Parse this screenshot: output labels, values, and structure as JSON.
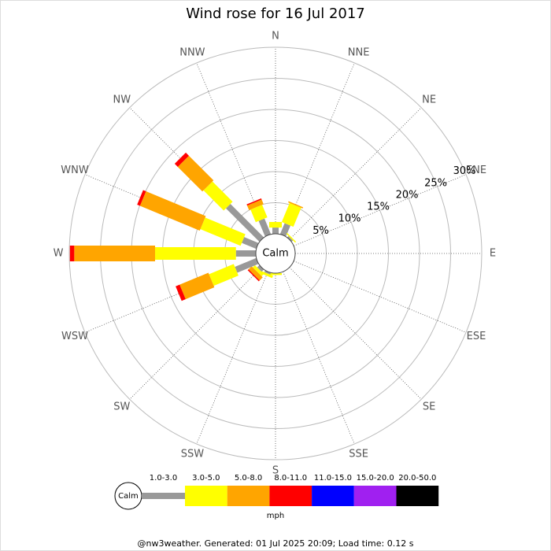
{
  "chart_data": {
    "type": "wind_rose",
    "title": "Wind rose for 16 Jul 2017",
    "calm_label": "Calm",
    "categories": [
      "N",
      "NNE",
      "NE",
      "ENE",
      "E",
      "ESE",
      "SE",
      "SSE",
      "S",
      "SSW",
      "SW",
      "WSW",
      "W",
      "WNW",
      "NW",
      "NNW"
    ],
    "series": [
      {
        "name": "1.0-3.0",
        "color": "#999999",
        "values": [
          1.0,
          1.9,
          0.3,
          0,
          0,
          0,
          0,
          0,
          0,
          0.3,
          0.5,
          3.7,
          3.2,
          2.5,
          7.6,
          2.7
        ]
      },
      {
        "name": "3.0-5.0",
        "color": "#ffff00",
        "values": [
          0.9,
          3.3,
          0.2,
          0,
          0,
          0,
          0,
          0,
          0.3,
          0.4,
          0.5,
          4.3,
          13.0,
          7.0,
          4.6,
          2.2
        ]
      },
      {
        "name": "5.0-8.0",
        "color": "#ffa500",
        "values": [
          0,
          0.2,
          0,
          0,
          0,
          0,
          0,
          0,
          0,
          0,
          0.7,
          5.0,
          13.0,
          10.4,
          5.6,
          0.8
        ]
      },
      {
        "name": "8.0-11.0",
        "color": "#ff0000",
        "values": [
          0,
          0,
          0,
          0,
          0,
          0,
          0,
          0,
          0,
          0,
          0.2,
          0.7,
          0.7,
          0.5,
          0.7,
          0.2
        ]
      },
      {
        "name": "11.0-15.0",
        "color": "#0000ff",
        "values": [
          0,
          0,
          0,
          0,
          0,
          0,
          0,
          0,
          0,
          0,
          0,
          0,
          0,
          0,
          0,
          0
        ]
      },
      {
        "name": "15.0-20.0",
        "color": "#a020f0",
        "values": [
          0,
          0,
          0,
          0,
          0,
          0,
          0,
          0,
          0,
          0,
          0,
          0,
          0,
          0,
          0,
          0
        ]
      },
      {
        "name": "20.0-50.0",
        "color": "#000000",
        "values": [
          0,
          0,
          0,
          0,
          0,
          0,
          0,
          0,
          0,
          0,
          0,
          0,
          0,
          0,
          0,
          0
        ]
      }
    ],
    "ylim": [
      0,
      30
    ],
    "yticks": [
      {
        "value": 5,
        "label": "5%"
      },
      {
        "value": 10,
        "label": "10%"
      },
      {
        "value": 15,
        "label": "15%"
      },
      {
        "value": 20,
        "label": "20%"
      },
      {
        "value": 25,
        "label": "25%"
      },
      {
        "value": 30,
        "label": "30%"
      }
    ],
    "legend_unit": "mph",
    "footer": "@nw3weather. Generated: 01 Jul 2025 20:09; Load time: 0.12 s"
  }
}
